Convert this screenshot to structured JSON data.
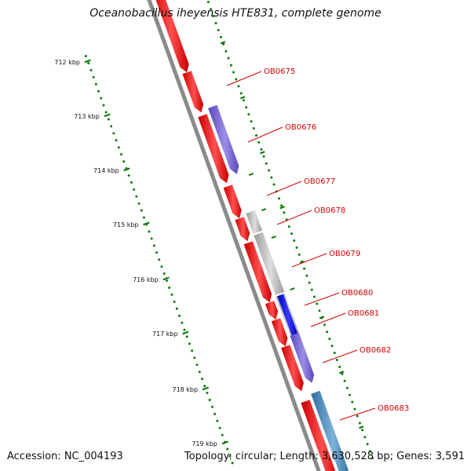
{
  "title": "Oceanobacillus iheyensis HTE831, complete genome",
  "footer": {
    "accession": "Accession: NC_004193",
    "summary": "Topology: circular; Length: 3,630,528 bp; Genes: 3,591"
  },
  "colors": {
    "backbone": "#8a8a8a",
    "tick_green": "#0a7a0a",
    "label_red": "#d40000",
    "gene_red": "#ff0000",
    "gene_purple": "#7a68d8",
    "gene_gray": "#b8b8b8",
    "gene_blue": "#0a00ff",
    "gene_steelblue": "#4b8ec0"
  },
  "scale_labels": [
    "712 kbp",
    "713 kbp",
    "714 kbp",
    "715 kbp",
    "716 kbp",
    "717 kbp",
    "718 kbp",
    "719 kbp"
  ],
  "gene_labels": [
    "OB0675",
    "OB0676",
    "OB0677",
    "OB0678",
    "OB0679",
    "OB0680",
    "OB0681",
    "OB0682",
    "OB0683"
  ]
}
